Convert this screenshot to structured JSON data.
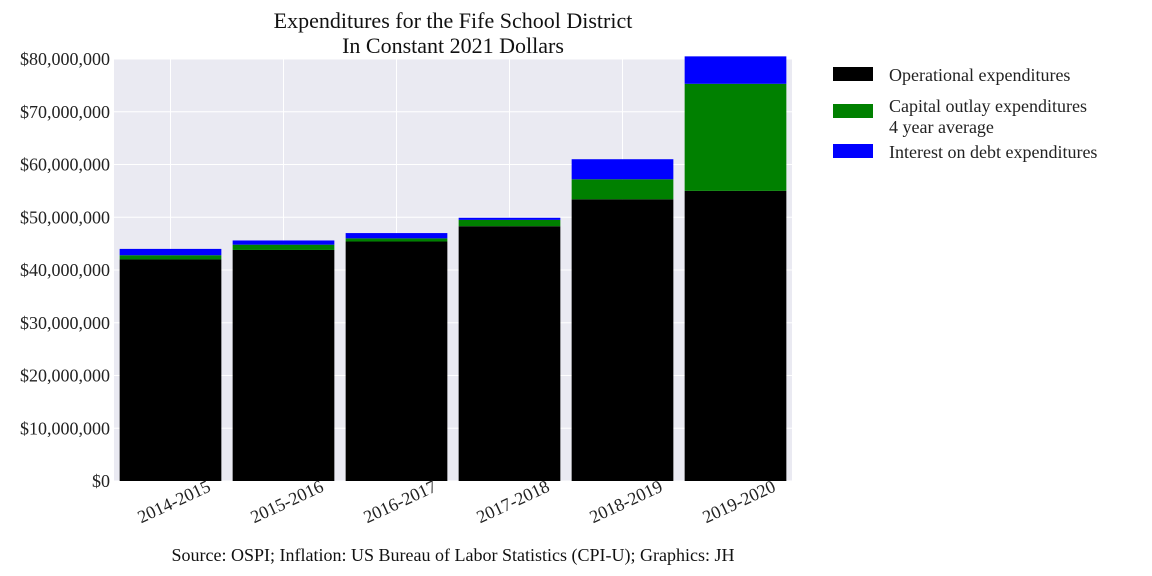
{
  "chart_data": {
    "type": "bar",
    "stacked": true,
    "title": [
      "Expenditures for the Fife School District",
      "In Constant 2021 Dollars"
    ],
    "xlabel": "",
    "ylabel": "",
    "categories": [
      "2014-2015",
      "2015-2016",
      "2016-2017",
      "2017-2018",
      "2018-2019",
      "2019-2020"
    ],
    "series": [
      {
        "name": "Operational expenditures",
        "color": "#000000",
        "values": [
          42000000,
          43800000,
          45400000,
          48300000,
          53400000,
          55000000
        ]
      },
      {
        "name": "Capital outlay expenditures\n4 year average",
        "color": "#008000",
        "values": [
          800000,
          1000000,
          600000,
          1200000,
          3800000,
          20300000
        ]
      },
      {
        "name": "Interest on debt expenditures",
        "color": "#0000ff",
        "values": [
          1200000,
          800000,
          1000000,
          400000,
          3800000,
          5200000
        ]
      }
    ],
    "ylim": [
      0,
      80000000
    ],
    "yticks": [
      0,
      10000000,
      20000000,
      30000000,
      40000000,
      50000000,
      60000000,
      70000000,
      80000000
    ],
    "ytick_labels": [
      "$0",
      "$10,000,000",
      "$20,000,000",
      "$30,000,000",
      "$40,000,000",
      "$50,000,000",
      "$60,000,000",
      "$70,000,000",
      "$80,000,000"
    ],
    "grid": true,
    "background": "#eaeaf2",
    "legend_position": "outside-right",
    "source": "Source: OSPI; Inflation: US Bureau of Labor Statistics (CPI-U); Graphics: JH"
  }
}
